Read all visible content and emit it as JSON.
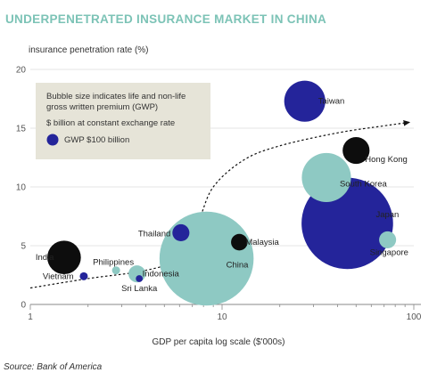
{
  "chart_data": {
    "type": "scatter",
    "title": "UNDERPENETRATED INSURANCE MARKET IN CHINA",
    "ylabel": "insurance penetration rate (%)",
    "xlabel": "GDP per capita log scale ($'000s)",
    "source": "Source: Bank of America",
    "x_scale": "log",
    "xlim": [
      1,
      100
    ],
    "ylim": [
      0,
      20
    ],
    "x_ticks": [
      1,
      10,
      100
    ],
    "y_ticks": [
      0,
      5,
      10,
      15,
      20
    ],
    "legend": {
      "lines": [
        "Bubble size indicates life and non-life",
        "gross written premium (GWP)"
      ],
      "unit": "$ billion at constant exchange rate",
      "ref_label": "GWP $100 billion",
      "ref_gwp": 100,
      "placement": "top-left"
    },
    "colors": {
      "black": "#0d0d0d",
      "navy": "#24249a",
      "teal": "#8ec9c3",
      "title": "#7cc3b6",
      "legend_bg": "#e6e4d8",
      "axis": "#888888"
    },
    "points": [
      {
        "name": "India",
        "x": 1.5,
        "y": 4.0,
        "gwp": 70,
        "color": "black"
      },
      {
        "name": "Vietnam",
        "x": 1.9,
        "y": 2.4,
        "gwp": 4,
        "color": "navy"
      },
      {
        "name": "Philippines",
        "x": 2.8,
        "y": 2.9,
        "gwp": 4,
        "color": "teal"
      },
      {
        "name": "Indonesia",
        "x": 3.6,
        "y": 2.6,
        "gwp": 18,
        "color": "teal"
      },
      {
        "name": "Sri Lanka",
        "x": 3.7,
        "y": 2.2,
        "gwp": 3,
        "color": "navy"
      },
      {
        "name": "Thailand",
        "x": 6.1,
        "y": 6.1,
        "gwp": 18,
        "color": "navy"
      },
      {
        "name": "China",
        "x": 8.3,
        "y": 3.9,
        "gwp": 550,
        "color": "teal"
      },
      {
        "name": "Malaysia",
        "x": 12.3,
        "y": 5.3,
        "gwp": 17,
        "color": "black"
      },
      {
        "name": "Taiwan",
        "x": 27,
        "y": 17.3,
        "gwp": 105,
        "color": "navy"
      },
      {
        "name": "South Korea",
        "x": 35,
        "y": 10.8,
        "gwp": 150,
        "color": "teal"
      },
      {
        "name": "Hong Kong",
        "x": 50,
        "y": 13.1,
        "gwp": 45,
        "color": "black"
      },
      {
        "name": "Japan",
        "x": 45,
        "y": 6.9,
        "gwp": 520,
        "color": "navy"
      },
      {
        "name": "Singapore",
        "x": 73,
        "y": 5.5,
        "gwp": 18,
        "color": "teal"
      }
    ],
    "trend": [
      [
        1,
        1.4
      ],
      [
        2,
        2.2
      ],
      [
        4,
        2.9
      ],
      [
        6,
        4.0
      ],
      [
        7.5,
        7.0
      ],
      [
        9,
        10.0
      ],
      [
        13,
        12.3
      ],
      [
        20,
        13.5
      ],
      [
        40,
        14.6
      ],
      [
        70,
        15.2
      ],
      [
        95,
        15.5
      ]
    ]
  }
}
